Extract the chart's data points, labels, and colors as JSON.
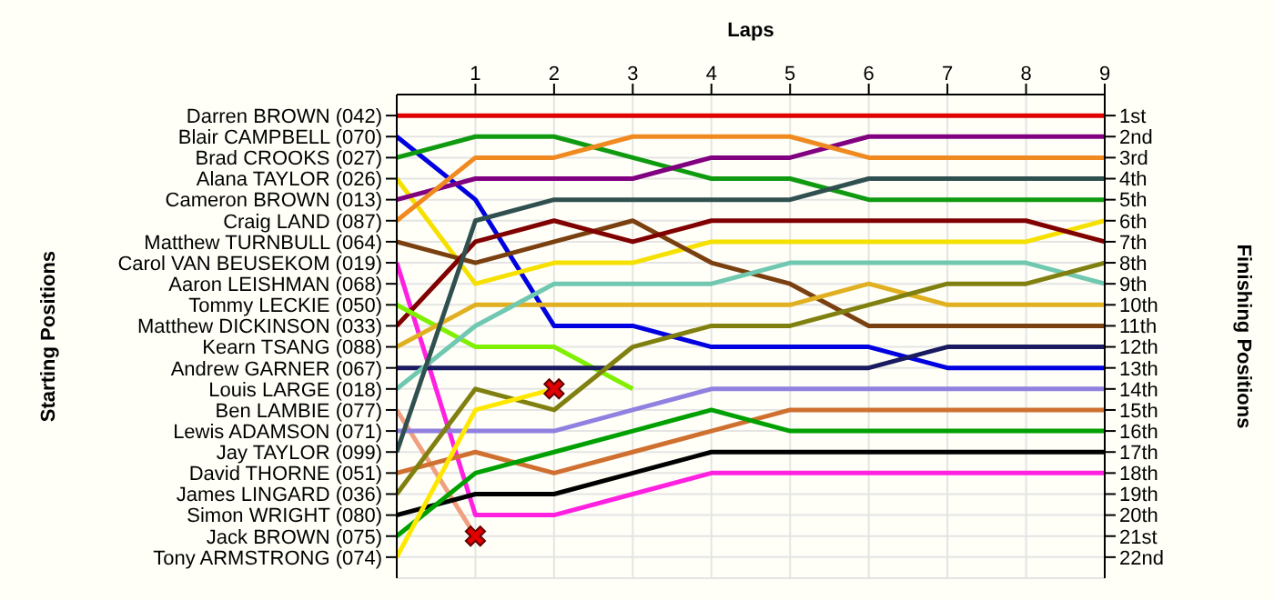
{
  "chart_data": {
    "type": "line",
    "xlabel": "Laps",
    "y2label": "Finishing Positions",
    "x": [
      0,
      1,
      2,
      3,
      4,
      5,
      6,
      7,
      8,
      9
    ],
    "xlim": [
      0,
      9
    ],
    "xticks": [
      1,
      2,
      3,
      4,
      5,
      6,
      7,
      8,
      9
    ],
    "annotations": [
      "Darren BROWN (042)",
      "Blair CAMPBELL (070)",
      "Brad CROOKS (027)",
      "Alana TAYLOR (026)",
      "Cameron BROWN (013)",
      "Craig LAND (087)",
      "Matthew TURNBULL (064)",
      "Carol VAN BEUSEKOM (019)",
      "Aaron LEISHMAN (068)",
      "Tommy LECKIE (050)",
      "Matthew DICKINSON (033)",
      "Kearn TSANG (088)",
      "Andrew GARNER (067)",
      "Louis LARGE (018)",
      "Ben LAMBIE (077)",
      "Lewis ADAMSON (071)",
      "Jay TAYLOR (099)",
      "David THORNE (051)",
      "James LINGARD (036)",
      "Simon WRIGHT (080)",
      "Jack BROWN (075)",
      "Tony ARMSTRONG (074)",
      "Starting Positions"
    ],
    "y2lim": [
      23,
      0
    ],
    "y2ticks": [
      {
        "value": 1,
        "label": "1st"
      },
      {
        "value": 2,
        "label": "2nd"
      },
      {
        "value": 3,
        "label": "3rd"
      },
      {
        "value": 4,
        "label": "4th"
      },
      {
        "value": 5,
        "label": "5th"
      },
      {
        "value": 6,
        "label": "6th"
      },
      {
        "value": 7,
        "label": "7th"
      },
      {
        "value": 8,
        "label": "8th"
      },
      {
        "value": 9,
        "label": "9th"
      },
      {
        "value": 10,
        "label": "10th"
      },
      {
        "value": 11,
        "label": "11th"
      },
      {
        "value": 12,
        "label": "12th"
      },
      {
        "value": 13,
        "label": "13th"
      },
      {
        "value": 14,
        "label": "14th"
      },
      {
        "value": 15,
        "label": "15th"
      },
      {
        "value": 16,
        "label": "16th"
      },
      {
        "value": 17,
        "label": "17th"
      },
      {
        "value": 18,
        "label": "18th"
      },
      {
        "value": 19,
        "label": "19th"
      },
      {
        "value": 20,
        "label": "20th"
      },
      {
        "value": 21,
        "label": "21st"
      },
      {
        "value": 22,
        "label": "22nd"
      }
    ],
    "grid": true,
    "marker": "none",
    "line_style": "solid",
    "series": [
      {
        "axis": "y2",
        "color": "#e00000",
        "values": [
          1,
          1,
          1,
          1,
          1,
          1,
          1,
          1,
          1,
          1
        ]
      },
      {
        "axis": "y2",
        "color": "#0000e0",
        "values": [
          2,
          5,
          11,
          11,
          12,
          12,
          12,
          13,
          13,
          13
        ]
      },
      {
        "axis": "y2",
        "color": "#109a10",
        "values": [
          3,
          2,
          2,
          3,
          4,
          4,
          5,
          5,
          5,
          5
        ]
      },
      {
        "axis": "y2",
        "color": "#f5e000",
        "values": [
          4,
          9,
          8,
          8,
          7,
          7,
          7,
          7,
          7,
          6
        ]
      },
      {
        "axis": "y2",
        "color": "#800080",
        "values": [
          5,
          4,
          4,
          4,
          3,
          3,
          2,
          2,
          2,
          2
        ]
      },
      {
        "axis": "y2",
        "color": "#f08a20",
        "values": [
          6,
          3,
          3,
          2,
          2,
          2,
          3,
          3,
          3,
          3
        ]
      },
      {
        "axis": "y2",
        "color": "#7a4010",
        "values": [
          7,
          8,
          7,
          6,
          8,
          9,
          11,
          11,
          11,
          11
        ]
      },
      {
        "axis": "y2",
        "color": "#ff20e0",
        "values": [
          8,
          20,
          20,
          19,
          18,
          18,
          18,
          18,
          18,
          18
        ]
      },
      {
        "axis": "y2",
        "color": "#800000",
        "values": [
          11,
          7,
          6,
          7,
          6,
          6,
          6,
          6,
          6,
          7
        ]
      },
      {
        "axis": "y2",
        "color": "#80f000",
        "values": [
          10,
          12,
          12,
          14,
          null,
          null,
          null,
          null,
          null,
          null
        ]
      },
      {
        "axis": "y2",
        "color": "#e0b020",
        "values": [
          12,
          10,
          10,
          10,
          10,
          10,
          9,
          10,
          10,
          10
        ]
      },
      {
        "axis": "y2",
        "color": "#1a1a60",
        "values": [
          13,
          13,
          13,
          13,
          13,
          13,
          13,
          12,
          12,
          12
        ]
      },
      {
        "axis": "y2",
        "color": "#70c8b0",
        "values": [
          14,
          11,
          9,
          9,
          9,
          8,
          8,
          8,
          8,
          9
        ]
      },
      {
        "axis": "y2",
        "color": "#f0a080",
        "values": [
          15,
          21,
          null,
          null,
          null,
          null,
          null,
          null,
          null,
          null
        ]
      },
      {
        "axis": "y2",
        "color": "#9080e0",
        "values": [
          16,
          16,
          16,
          15,
          14,
          14,
          14,
          14,
          14,
          14
        ]
      },
      {
        "axis": "y2",
        "color": "#305050",
        "values": [
          17,
          6,
          5,
          5,
          5,
          5,
          4,
          4,
          4,
          4
        ]
      },
      {
        "axis": "y2",
        "color": "#d07030",
        "values": [
          18,
          17,
          18,
          17,
          16,
          15,
          15,
          15,
          15,
          15
        ]
      },
      {
        "axis": "y2",
        "color": "#808010",
        "values": [
          19,
          14,
          15,
          12,
          11,
          11,
          10,
          9,
          9,
          8
        ]
      },
      {
        "axis": "y2",
        "color": "#000000",
        "values": [
          20,
          19,
          19,
          18,
          17,
          17,
          17,
          17,
          17,
          17
        ]
      },
      {
        "axis": "y2",
        "color": "#00a000",
        "values": [
          21,
          18,
          17,
          16,
          15,
          16,
          16,
          16,
          16,
          16
        ]
      },
      {
        "axis": "y2",
        "color": "#ffe800",
        "values": [
          22,
          15,
          14,
          null,
          null,
          null,
          null,
          null,
          null,
          null
        ]
      },
      {
        "axis": "y2",
        "type": "scatter",
        "marker": "cross",
        "color": "#e00000",
        "x": [
          1,
          2
        ],
        "values": [
          21,
          14
        ]
      }
    ]
  }
}
